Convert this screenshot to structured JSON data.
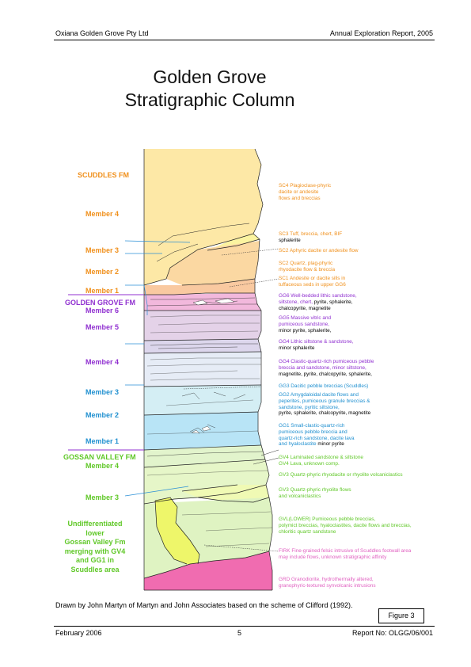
{
  "header": {
    "left": "Oxiana Golden Grove Pty Ltd",
    "right": "Annual Exploration Report, 2005"
  },
  "title": {
    "line1": "Golden Grove",
    "line2": "Stratigraphic Column"
  },
  "colors": {
    "orange": "#f0901c",
    "purple": "#9030d0",
    "blue": "#2090d0",
    "green": "#60c828",
    "pink": "#e060c0",
    "black": "#000000"
  },
  "left_labels": {
    "scuddles_fm": "SCUDDLES FM",
    "member4_sc": "Member 4",
    "member3_sc": "Member 3",
    "member2_sc": "Member 2",
    "member1_sc": "Member 1",
    "golden_grove_fm": "GOLDEN GROVE FM",
    "member6": "Member 6",
    "member5": "Member 5",
    "member4_gg": "Member 4",
    "member3_gg": "Member 3",
    "member2_gg": "Member 2",
    "member1_gg": "Member 1",
    "gossan_valley_fm": "GOSSAN VALLEY FM",
    "member4_gv": "Member 4",
    "member3_gv": "Member 3",
    "undiff": [
      "Undifferentiated",
      "lower",
      "Gossan Valley Fm",
      "merging with GV4",
      "and GG1 in",
      "Scuddles area"
    ]
  },
  "descriptions": {
    "sc4": [
      "SC4 Plagioclase-phyric",
      "dacite or andesite",
      "flows and breccias"
    ],
    "sc3": [
      "SC3 Tuff, breccia, chert, BIF"
    ],
    "sc3_min": "sphalerite",
    "sc2a": "SC2 Aphyric dacite or andesite flow",
    "sc2": [
      "SC2 Quartz, plag-phyric",
      "rhyodacite flow & breccia"
    ],
    "sc1": [
      "SC1 Andesite or dacite sills in",
      "tuffaceous seds in upper GG6"
    ],
    "gg6": [
      "GG6 Well-bedded  lithic sandstone,",
      "siltstone, chert,"
    ],
    "gg6_min": [
      "pyrite, sphalerite,",
      "chalcopyrite, magnetite"
    ],
    "gg5": [
      "GG5 Massive vitric and",
      "pumiceous sandstone,"
    ],
    "gg5_min": "minor pyrite, sphalerite,",
    "gg4a": "GG4 Lithic siltstone & sandstone,",
    "gg4a_min": "minor sphalerite",
    "gg4": [
      "GG4 Clastic-quartz-rich pumiceous pebble",
      "breccia and sandstone, minor siltstone,"
    ],
    "gg4_min": "magnetite, pyrite, chalcopyrite, sphalerite,",
    "gg3": "GG3 Dacitic pebble breccias (Scuddles)",
    "gg2": [
      "GG2 Amygdaloidal dacite flows and",
      "peperites, pumiceous granule breccias &",
      "sandstone, pyritic siltstone,"
    ],
    "gg2_min": "pyrite, sphalerite, chalcopyrite, magnetite",
    "gg1": [
      "GG1 Small-clastic-quartz-rich",
      "pumiceous pebble breccia and",
      "quartz-rich sandstone, dacite lava",
      "and hyaloclastite"
    ],
    "gg1_min": "minor pyrite",
    "gv4a": "GV4 Laminated sandstone & siltstone",
    "gv4b": "GV4 Lava, unknown comp.",
    "gv3a": "GV3 Quartz-phyric rhyodacite or rhyolite volcaniclastics",
    "gv3b": [
      "GV3 Quartz-phyric rhyolite flows",
      "and volcaniclastics"
    ],
    "gvl": [
      "GVL(LOWER) Pumiceous pebble breccias,",
      "polymict breccias, hyaloclastites, dacite flows and breccias,",
      "chloritic quartz sandstone"
    ],
    "firk": [
      "FIRK Fine-grained felsic intrusive of Scuddles footwall area",
      "may include flows, unknown stratigraphic affinity"
    ],
    "grd": [
      "GRD Granodiorite, hydrothermally altered,",
      "granophyric-textured synvolcanic intrusions"
    ]
  },
  "caption": "Drawn by John Martyn of Martyn and John Associates based on the scheme of Clifford (1992).",
  "figure_label": "Figure 3",
  "footer": {
    "left": "February 2006",
    "center": "5",
    "right": "Report No: OLGG/06/001"
  }
}
